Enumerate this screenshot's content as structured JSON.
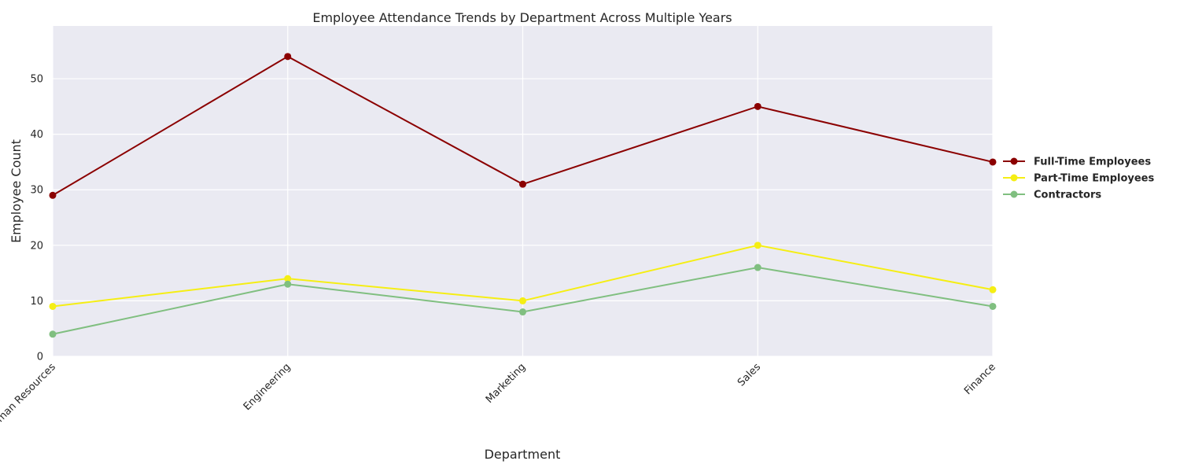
{
  "chart_data": {
    "type": "line",
    "title": "Employee Attendance Trends by Department Across Multiple Years",
    "xlabel": "Department",
    "ylabel": "Employee Count",
    "categories": [
      "Human Resources",
      "Engineering",
      "Marketing",
      "Sales",
      "Finance"
    ],
    "ylim": [
      0,
      59.5
    ],
    "yticks": [
      0,
      10,
      20,
      30,
      40,
      50
    ],
    "grid": true,
    "legend_position": "right",
    "background_color": "#eaeaf2",
    "series": [
      {
        "name": "Full-Time Employees",
        "color": "#8b0000",
        "values": [
          29,
          54,
          31,
          45,
          35
        ]
      },
      {
        "name": "Part-Time Employees",
        "color": "#f5ee14",
        "values": [
          9,
          14,
          10,
          20,
          12
        ]
      },
      {
        "name": "Contractors",
        "color": "#80bf80",
        "values": [
          4,
          13,
          8,
          16,
          9
        ]
      }
    ]
  }
}
